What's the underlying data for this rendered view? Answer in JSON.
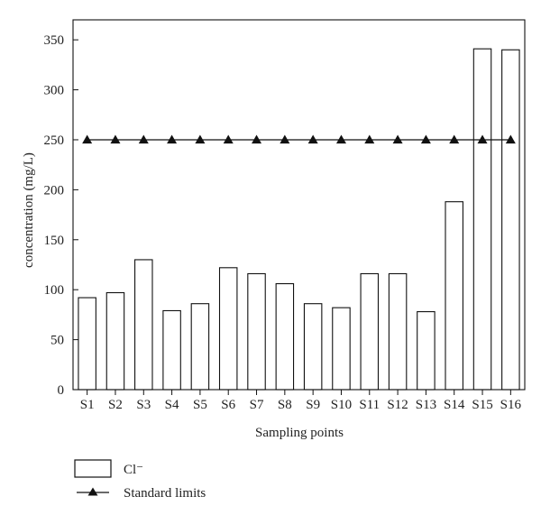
{
  "chart_data": {
    "type": "bar",
    "categories": [
      "S1",
      "S2",
      "S3",
      "S4",
      "S5",
      "S6",
      "S7",
      "S8",
      "S9",
      "S10",
      "S11",
      "S12",
      "S13",
      "S14",
      "S15",
      "S16"
    ],
    "series": [
      {
        "name": "Cl⁻",
        "kind": "bar",
        "values": [
          92,
          97,
          130,
          79,
          86,
          122,
          116,
          106,
          86,
          82,
          116,
          116,
          78,
          188,
          341,
          340
        ]
      },
      {
        "name": "Standard limits",
        "kind": "line",
        "marker": "triangle",
        "values": [
          250,
          250,
          250,
          250,
          250,
          250,
          250,
          250,
          250,
          250,
          250,
          250,
          250,
          250,
          250,
          250
        ]
      }
    ],
    "title": "",
    "xlabel": "Sampling points",
    "ylabel": "concentration (mg/L)",
    "ylim": [
      0,
      370
    ],
    "yticks": [
      0,
      50,
      100,
      150,
      200,
      250,
      300,
      350
    ],
    "grid": false,
    "legend_position": "bottom-left"
  }
}
